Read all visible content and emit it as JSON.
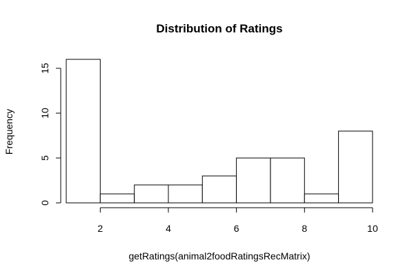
{
  "chart_data": {
    "type": "bar",
    "title": "Distribution of Ratings",
    "xlabel": "getRatings(animal2foodRatingsRecMatrix)",
    "ylabel": "Frequency",
    "bins": [
      {
        "x0": 1,
        "x1": 2,
        "count": 16
      },
      {
        "x0": 2,
        "x1": 3,
        "count": 1
      },
      {
        "x0": 3,
        "x1": 4,
        "count": 2
      },
      {
        "x0": 4,
        "x1": 5,
        "count": 2
      },
      {
        "x0": 5,
        "x1": 6,
        "count": 3
      },
      {
        "x0": 6,
        "x1": 7,
        "count": 5
      },
      {
        "x0": 7,
        "x1": 8,
        "count": 5
      },
      {
        "x0": 8,
        "x1": 9,
        "count": 1
      },
      {
        "x0": 9,
        "x1": 10,
        "count": 8
      }
    ],
    "x_ticks": [
      2,
      4,
      6,
      8,
      10
    ],
    "y_ticks": [
      0,
      5,
      10,
      15
    ],
    "xlim": [
      1,
      10
    ],
    "ylim": [
      0,
      16
    ],
    "grid": false,
    "legend": "none"
  }
}
